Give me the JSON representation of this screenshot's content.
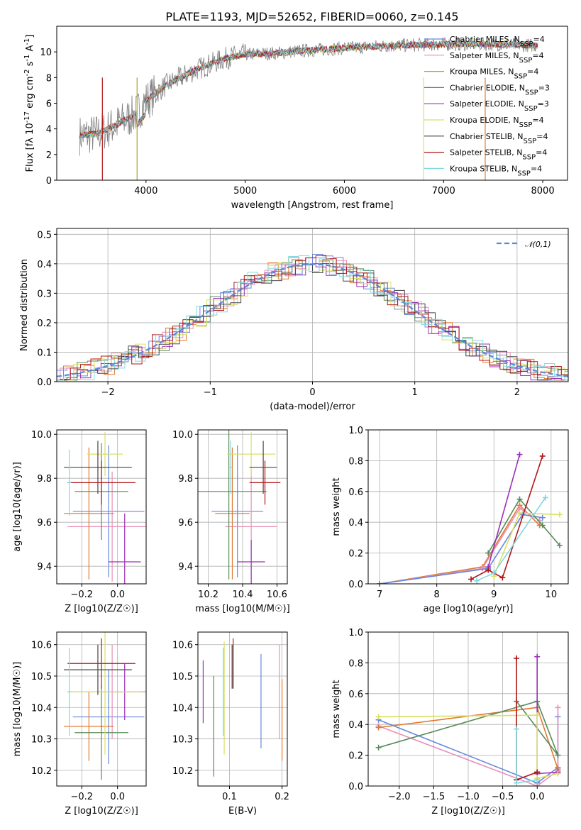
{
  "figure": {
    "title": "PLATE=1193, MJD=52652, FIBERID=0060, z=0.145"
  },
  "chart_data": [
    {
      "id": "spectrum",
      "type": "line",
      "title": "PLATE=1193, MJD=52652, FIBERID=0060, z=0.145",
      "xlabel": "wavelength [Angstrom, rest frame]",
      "ylabel": "Flux [f_λ 10^-17 erg cm^-2 s^-1 A^-1]",
      "xlim": [
        3100,
        8250
      ],
      "ylim": [
        0,
        12
      ],
      "xticks": [
        4000,
        5000,
        6000,
        7000,
        8000
      ],
      "yticks": [
        0,
        2,
        4,
        6,
        8,
        10
      ],
      "grid": false,
      "legend_position": "top-right",
      "continuum": {
        "x": [
          3330,
          3500,
          3700,
          3900,
          4000,
          4200,
          4500,
          4800,
          5000,
          5300,
          5600,
          6000,
          6500,
          7000,
          7500,
          7950
        ],
        "y": [
          3.5,
          3.6,
          4.3,
          5.2,
          6.2,
          7.4,
          8.6,
          9.5,
          9.8,
          9.9,
          10.1,
          10.3,
          10.5,
          10.6,
          10.6,
          10.5
        ]
      },
      "legend": [
        {
          "label": "Chabrier MILES, N_SSP=4",
          "color": "#6688dd"
        },
        {
          "label": "Salpeter MILES, N_SSP=4",
          "color": "#e890b8"
        },
        {
          "label": "Kroupa MILES, N_SSP=4",
          "color": "#b89a30"
        },
        {
          "label": "Chabrier ELODIE, N_SSP=3",
          "color": "#5a8a5a"
        },
        {
          "label": "Salpeter ELODIE, N_SSP=3",
          "color": "#9b30b8"
        },
        {
          "label": "Kroupa ELODIE, N_SSP=4",
          "color": "#d8e060"
        },
        {
          "label": "Chabrier STELIB, N_SSP=4",
          "color": "#444444"
        },
        {
          "label": "Salpeter STELIB, N_SSP=4",
          "color": "#b01818"
        },
        {
          "label": "Kroupa STELIB, N_SSP=4",
          "color": "#80d8e0"
        }
      ]
    },
    {
      "id": "residuals",
      "type": "line",
      "xlabel": "(data-model)/error",
      "ylabel": "Normed distribution",
      "xlim": [
        -2.5,
        2.5
      ],
      "ylim": [
        0,
        0.52
      ],
      "xticks": [
        -2,
        -1,
        0,
        1,
        2
      ],
      "xtick_labels": [
        "−2",
        "−1",
        "0",
        "1",
        "2"
      ],
      "yticks": [
        0.0,
        0.1,
        0.2,
        0.3,
        0.4,
        0.5
      ],
      "ytick_labels": [
        "0.0",
        "0.1",
        "0.2",
        "0.3",
        "0.4",
        "0.5"
      ],
      "grid": true,
      "legend_position": "top-right",
      "legend": [
        {
          "label": "𝒩(0,1)",
          "color": "#5b87d8",
          "style": "dashed"
        }
      ],
      "bin_width": 0.1,
      "histogram_colors": [
        "#6688dd",
        "#e890b8",
        "#e07a30",
        "#5a8a5a",
        "#9b30b8",
        "#d8e060",
        "#444444",
        "#b01818",
        "#80d8e0"
      ]
    },
    {
      "id": "age_vs_Z",
      "type": "scatter",
      "xlabel": "Z [log10(Z/Z☉)]",
      "ylabel": "age [log10(age/yr)]",
      "xlim": [
        -0.34,
        0.16
      ],
      "ylim": [
        9.32,
        10.02
      ],
      "xticks": [
        -0.2,
        0.0
      ],
      "xtick_labels": [
        "−0.2",
        "0.0"
      ],
      "yticks": [
        9.4,
        9.6,
        9.8,
        10.0
      ],
      "ytick_labels": [
        "9.4",
        "9.6",
        "9.8",
        "10.0"
      ],
      "grid": true,
      "points": [
        {
          "x": -0.05,
          "y": 9.65,
          "xerr": 0.2,
          "yerr": 0.3,
          "color": "#6688dd"
        },
        {
          "x": -0.03,
          "y": 9.58,
          "xerr": 0.25,
          "yerr": 0.25,
          "color": "#e890b8"
        },
        {
          "x": -0.16,
          "y": 9.64,
          "xerr": 0.14,
          "yerr": 0.3,
          "color": "#e07a30"
        },
        {
          "x": -0.09,
          "y": 9.74,
          "xerr": 0.15,
          "yerr": 0.22,
          "color": "#5a8a5a"
        },
        {
          "x": 0.04,
          "y": 9.42,
          "xerr": 0.09,
          "yerr": 0.22,
          "color": "#9b30b8"
        },
        {
          "x": -0.07,
          "y": 9.91,
          "xerr": 0.1,
          "yerr": 0.1,
          "color": "#d8e060"
        },
        {
          "x": -0.11,
          "y": 9.85,
          "xerr": 0.19,
          "yerr": 0.12,
          "color": "#444444"
        },
        {
          "x": -0.09,
          "y": 9.78,
          "xerr": 0.19,
          "yerr": 0.1,
          "color": "#b01818"
        },
        {
          "x": -0.27,
          "y": 9.78,
          "xerr": 0.01,
          "yerr": 0.15,
          "color": "#80d8e0"
        }
      ]
    },
    {
      "id": "age_vs_mass",
      "type": "scatter",
      "xlabel": "mass [log10(M/M☉)]",
      "ylabel": "",
      "xlim": [
        10.14,
        10.66
      ],
      "ylim": [
        9.32,
        10.02
      ],
      "xticks": [
        10.2,
        10.4,
        10.6
      ],
      "xtick_labels": [
        "10.2",
        "10.4",
        "10.6"
      ],
      "yticks": [
        9.4,
        9.6,
        9.8,
        10.0
      ],
      "ytick_labels": [
        "9.4",
        "9.6",
        "9.8",
        "10.0"
      ],
      "grid": true,
      "points": [
        {
          "x": 10.37,
          "y": 9.65,
          "xerr": 0.15,
          "yerr": 0.3,
          "color": "#6688dd"
        },
        {
          "x": 10.45,
          "y": 9.58,
          "xerr": 0.15,
          "yerr": 0.26,
          "color": "#e890b8"
        },
        {
          "x": 10.34,
          "y": 9.64,
          "xerr": 0.1,
          "yerr": 0.3,
          "color": "#e07a30"
        },
        {
          "x": 10.32,
          "y": 9.74,
          "xerr": 0.22,
          "yerr": 0.4,
          "color": "#5a8a5a"
        },
        {
          "x": 10.45,
          "y": 9.42,
          "xerr": 0.08,
          "yerr": 0.1,
          "color": "#9b30b8"
        },
        {
          "x": 10.45,
          "y": 9.91,
          "xerr": 0.14,
          "yerr": 0.1,
          "color": "#d8e060"
        },
        {
          "x": 10.52,
          "y": 9.85,
          "xerr": 0.08,
          "yerr": 0.12,
          "color": "#444444"
        },
        {
          "x": 10.53,
          "y": 9.78,
          "xerr": 0.09,
          "yerr": 0.1,
          "color": "#b01818"
        },
        {
          "x": 10.33,
          "y": 9.85,
          "xerr": 0.01,
          "yerr": 0.12,
          "color": "#80d8e0"
        }
      ]
    },
    {
      "id": "mass_weight_vs_age",
      "type": "line",
      "xlabel": "age [log10(age/yr)]",
      "ylabel": "mass weight",
      "xlim": [
        6.8,
        10.3
      ],
      "ylim": [
        0,
        1
      ],
      "xticks": [
        7,
        8,
        9,
        10
      ],
      "xtick_labels": [
        "7",
        "8",
        "9",
        "10"
      ],
      "yticks": [
        0,
        0.2,
        0.4,
        0.6,
        0.8,
        1.0
      ],
      "ytick_labels": [
        "0.0",
        "0.2",
        "0.4",
        "0.6",
        "0.8",
        "1.0"
      ],
      "grid": true,
      "series": [
        {
          "color": "#e07a30",
          "x": [
            7.0,
            8.8,
            9.45,
            9.8
          ],
          "y": [
            0.0,
            0.11,
            0.51,
            0.38
          ]
        },
        {
          "color": "#e890b8",
          "x": [
            7.0,
            8.8,
            9.45,
            9.8
          ],
          "y": [
            0.0,
            0.1,
            0.49,
            0.41
          ]
        },
        {
          "color": "#6688dd",
          "x": [
            7.0,
            8.9,
            9.5,
            9.85
          ],
          "y": [
            0.0,
            0.1,
            0.45,
            0.43
          ]
        },
        {
          "color": "#5a8a5a",
          "x": [
            8.9,
            9.45,
            9.85,
            10.15
          ],
          "y": [
            0.2,
            0.55,
            0.38,
            0.25
          ]
        },
        {
          "color": "#9b30b8",
          "x": [
            8.9,
            9.45
          ],
          "y": [
            0.11,
            0.84
          ]
        },
        {
          "color": "#d8e060",
          "x": [
            9.0,
            9.45,
            10.15
          ],
          "y": [
            0.05,
            0.46,
            0.45
          ]
        },
        {
          "color": "#b01818",
          "x": [
            8.6,
            8.9,
            9.15,
            9.85
          ],
          "y": [
            0.03,
            0.09,
            0.04,
            0.83
          ]
        },
        {
          "color": "#80d8e0",
          "x": [
            8.7,
            9.0,
            9.9
          ],
          "y": [
            0.02,
            0.07,
            0.56
          ]
        }
      ]
    },
    {
      "id": "mass_vs_Z",
      "type": "scatter",
      "xlabel": "Z [log10(Z/Z☉)]",
      "ylabel": "mass [log10(M/M☉)]",
      "xlim": [
        -0.34,
        0.16
      ],
      "ylim": [
        10.15,
        10.64
      ],
      "xticks": [
        -0.2,
        0.0
      ],
      "xtick_labels": [
        "−0.2",
        "0.0"
      ],
      "yticks": [
        10.2,
        10.3,
        10.4,
        10.5,
        10.6
      ],
      "ytick_labels": [
        "10.2",
        "10.3",
        "10.4",
        "10.5",
        "10.6"
      ],
      "grid": true,
      "points": [
        {
          "x": -0.05,
          "y": 10.37,
          "xerr": 0.2,
          "yerr": 0.15,
          "color": "#6688dd"
        },
        {
          "x": -0.03,
          "y": 10.45,
          "xerr": 0.25,
          "yerr": 0.15,
          "color": "#e890b8"
        },
        {
          "x": -0.16,
          "y": 10.34,
          "xerr": 0.14,
          "yerr": 0.11,
          "color": "#e07a30"
        },
        {
          "x": -0.09,
          "y": 10.32,
          "xerr": 0.15,
          "yerr": 0.15,
          "color": "#5a8a5a"
        },
        {
          "x": 0.04,
          "y": 10.45,
          "xerr": 0.09,
          "yerr": 0.09,
          "color": "#9b30b8"
        },
        {
          "x": -0.07,
          "y": 10.45,
          "xerr": 0.2,
          "yerr": 0.2,
          "color": "#d8e060"
        },
        {
          "x": -0.11,
          "y": 10.52,
          "xerr": 0.19,
          "yerr": 0.08,
          "color": "#444444"
        },
        {
          "x": -0.09,
          "y": 10.54,
          "xerr": 0.19,
          "yerr": 0.08,
          "color": "#b01818"
        },
        {
          "x": -0.27,
          "y": 10.45,
          "xerr": 0.01,
          "yerr": 0.14,
          "color": "#80d8e0"
        }
      ]
    },
    {
      "id": "mass_vs_ebv",
      "type": "scatter",
      "xlabel": "E(B-V)",
      "ylabel": "",
      "xlim": [
        0.04,
        0.21
      ],
      "ylim": [
        10.15,
        10.64
      ],
      "xticks": [
        0.1,
        0.2
      ],
      "xtick_labels": [
        "0.1",
        "0.2"
      ],
      "yticks": [
        10.2,
        10.3,
        10.4,
        10.5,
        10.6
      ],
      "ytick_labels": [
        "10.2",
        "10.3",
        "10.4",
        "10.5",
        "10.6"
      ],
      "grid": true,
      "points": [
        {
          "x": 0.16,
          "y": 10.42,
          "yerr": 0.15,
          "color": "#6688dd"
        },
        {
          "x": 0.195,
          "y": 10.45,
          "yerr": 0.15,
          "color": "#e890b8"
        },
        {
          "x": 0.2,
          "y": 10.36,
          "yerr": 0.13,
          "color": "#e07a30"
        },
        {
          "x": 0.07,
          "y": 10.34,
          "yerr": 0.16,
          "color": "#5a8a5a"
        },
        {
          "x": 0.05,
          "y": 10.45,
          "yerr": 0.1,
          "color": "#9b30b8"
        },
        {
          "x": 0.09,
          "y": 10.43,
          "yerr": 0.18,
          "color": "#d8e060"
        },
        {
          "x": 0.105,
          "y": 10.53,
          "yerr": 0.07,
          "color": "#444444"
        },
        {
          "x": 0.107,
          "y": 10.54,
          "yerr": 0.08,
          "color": "#b01818"
        },
        {
          "x": 0.088,
          "y": 10.45,
          "yerr": 0.14,
          "color": "#80d8e0"
        }
      ]
    },
    {
      "id": "mass_weight_vs_Z",
      "type": "line",
      "xlabel": "Z [log10(Z/Z☉)]",
      "ylabel": "mass weight",
      "xlim": [
        -2.45,
        0.45
      ],
      "ylim": [
        0,
        1
      ],
      "xticks": [
        -2.0,
        -1.5,
        -1.0,
        -0.5,
        0.0
      ],
      "xtick_labels": [
        "−2.0",
        "−1.5",
        "−1.0",
        "−0.5",
        "0.0"
      ],
      "yticks": [
        0,
        0.2,
        0.4,
        0.6,
        0.8,
        1.0
      ],
      "ytick_labels": [
        "0.0",
        "0.2",
        "0.4",
        "0.6",
        "0.8",
        "1.0"
      ],
      "grid": true,
      "series": [
        {
          "color": "#6688dd",
          "x": [
            -2.3,
            0.0,
            0.3,
            0.3
          ],
          "y": [
            0.43,
            0.02,
            0.12,
            0.45
          ]
        },
        {
          "color": "#e890b8",
          "x": [
            -2.3,
            0.0,
            0.3,
            0.3
          ],
          "y": [
            0.39,
            0.0,
            0.1,
            0.51
          ]
        },
        {
          "color": "#e07a30",
          "x": [
            -2.3,
            0.0,
            0.3
          ],
          "y": [
            0.38,
            0.51,
            0.11
          ]
        },
        {
          "color": "#5a8a5a",
          "x": [
            -2.3,
            0.0,
            0.3,
            -0.3
          ],
          "y": [
            0.25,
            0.55,
            0.2,
            0.55
          ]
        },
        {
          "color": "#9b30b8",
          "x": [
            0.0,
            0.0,
            0.3,
            0.3
          ],
          "y": [
            0.84,
            0.08,
            0.09,
            0.09
          ]
        },
        {
          "color": "#d8e060",
          "x": [
            -2.3,
            0.0,
            0.0,
            0.3
          ],
          "y": [
            0.45,
            0.46,
            0.05,
            0.08
          ]
        },
        {
          "color": "#b01818",
          "x": [
            -0.3,
            -0.3,
            0.0,
            0.0
          ],
          "y": [
            0.83,
            0.04,
            0.09,
            0.09
          ]
        },
        {
          "color": "#80d8e0",
          "x": [
            -0.3,
            -0.3,
            0.0
          ],
          "y": [
            0.37,
            0.02,
            0.04
          ]
        }
      ]
    }
  ]
}
